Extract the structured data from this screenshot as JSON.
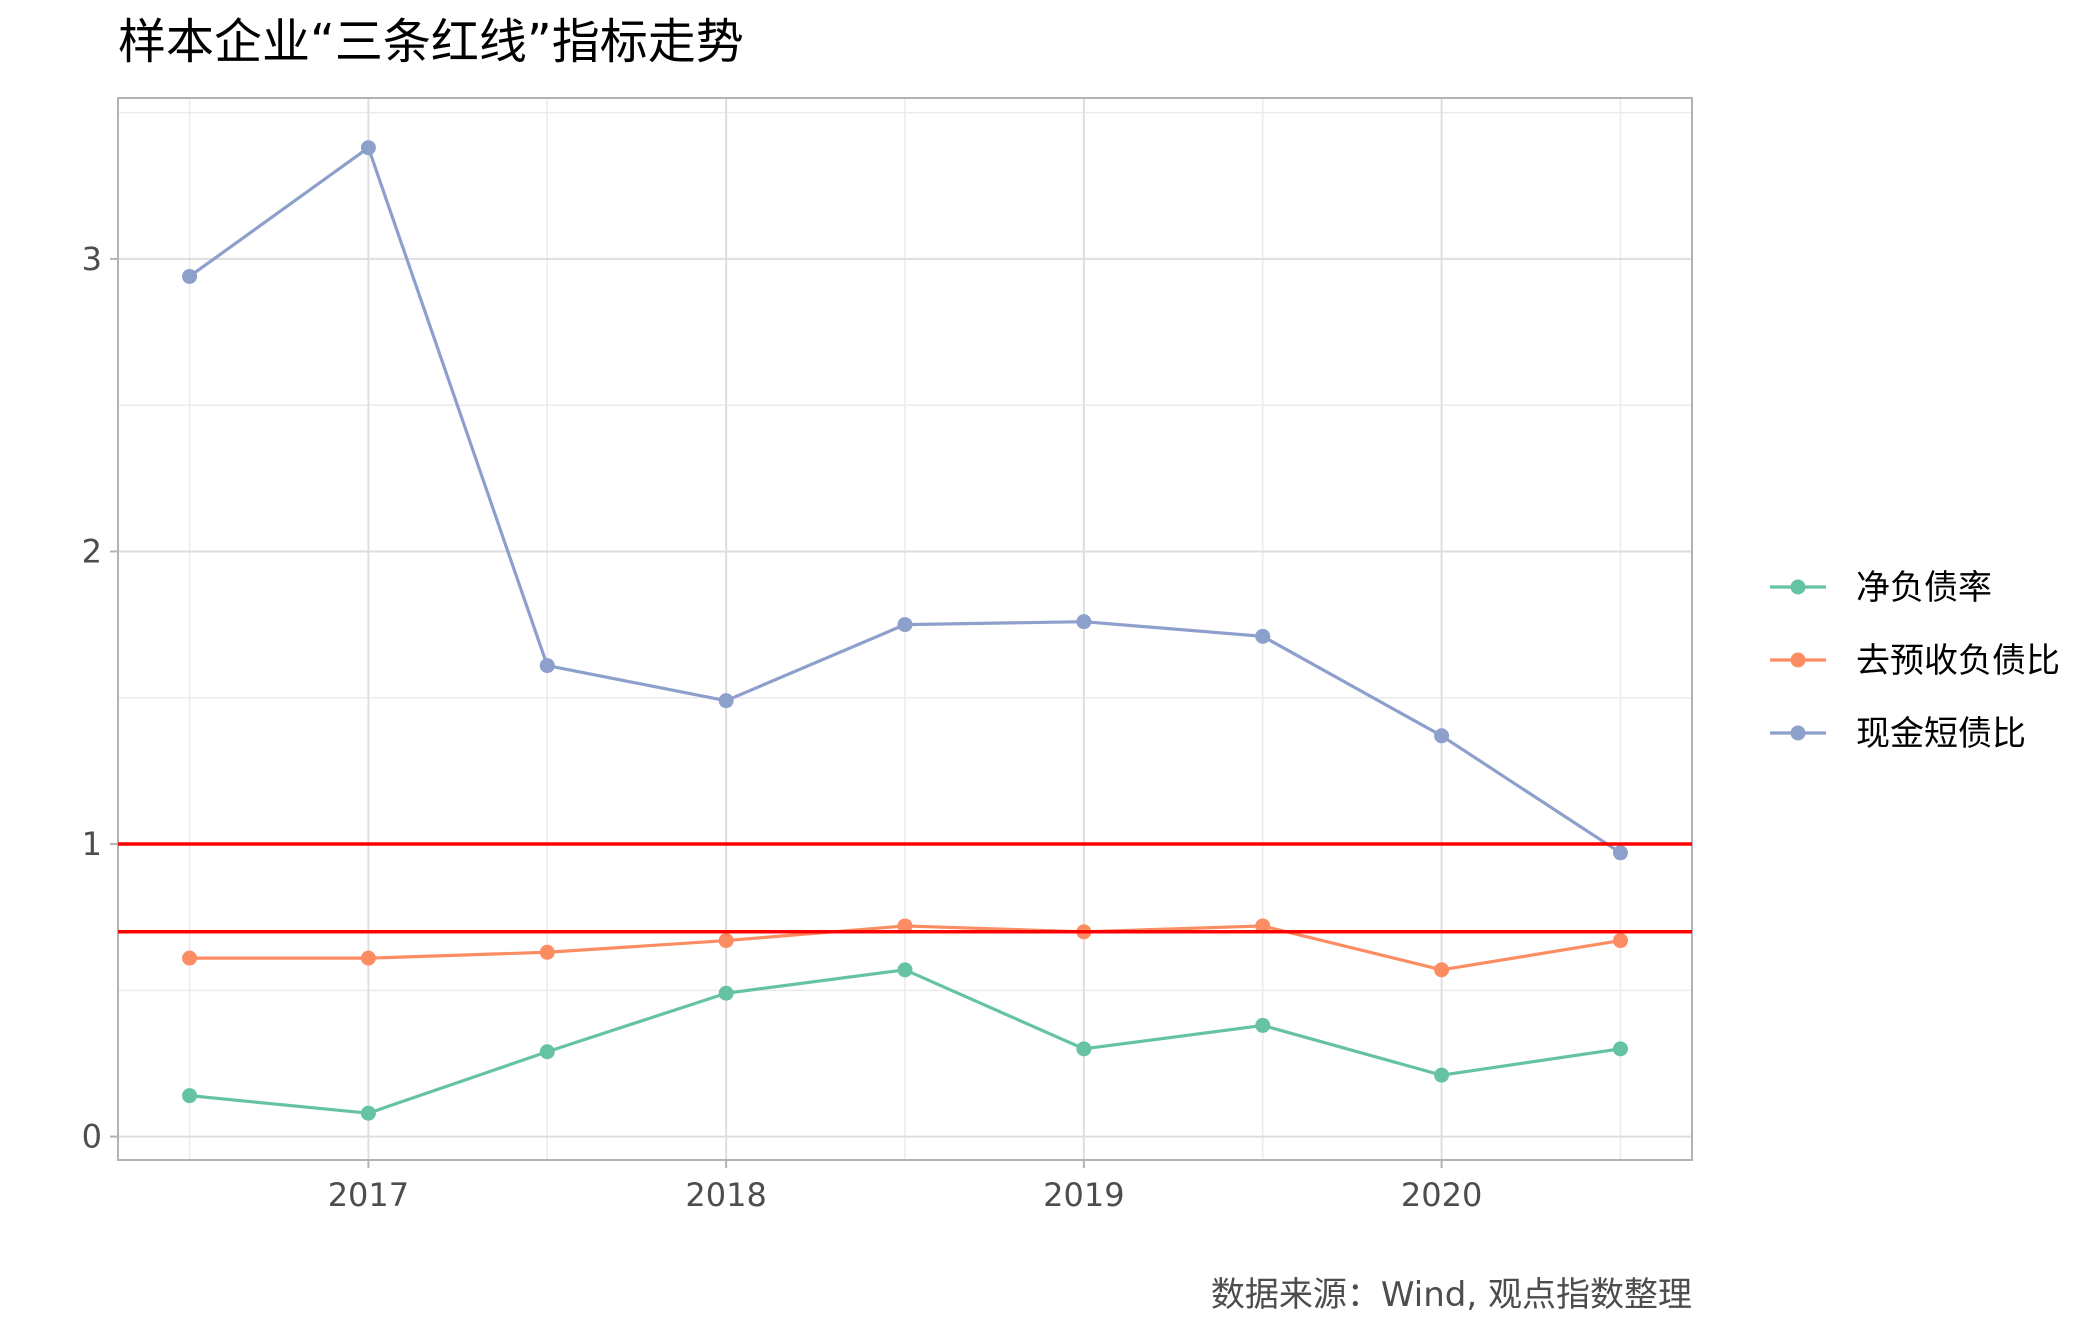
{
  "chart_data": {
    "type": "line",
    "title": "样本企业“三条红线”指标走势",
    "caption": "数据来源：Wind, 观点指数整理",
    "xlabel": "",
    "ylabel": "",
    "x": [
      2016.5,
      2017.0,
      2017.5,
      2018.0,
      2018.5,
      2019.0,
      2019.5,
      2020.0,
      2020.5
    ],
    "xlim": [
      2016.3,
      2020.7
    ],
    "ylim": [
      -0.08,
      3.55
    ],
    "x_ticks": [
      2017,
      2018,
      2019,
      2020
    ],
    "x_tick_labels": [
      "2017",
      "2018",
      "2019",
      "2020"
    ],
    "y_ticks": [
      0,
      1,
      2,
      3
    ],
    "y_tick_labels": [
      "0",
      "1",
      "2",
      "3"
    ],
    "grid": true,
    "legend_position": "right",
    "series": [
      {
        "name": "净负债率",
        "color": "#66c2a5",
        "values": [
          0.14,
          0.08,
          0.29,
          0.49,
          0.57,
          0.3,
          0.38,
          0.21,
          0.3
        ]
      },
      {
        "name": "去预收负债比",
        "color": "#fc8d62",
        "values": [
          0.61,
          0.61,
          0.63,
          0.67,
          0.72,
          0.7,
          0.72,
          0.57,
          0.67
        ]
      },
      {
        "name": "现金短债比",
        "color": "#8da0cb",
        "values": [
          2.94,
          3.38,
          1.61,
          1.49,
          1.75,
          1.76,
          1.71,
          1.37,
          0.97
        ]
      }
    ],
    "reference_lines": [
      {
        "y": 1.0,
        "color": "#ff0000"
      },
      {
        "y": 0.7,
        "color": "#ff0000"
      }
    ]
  }
}
